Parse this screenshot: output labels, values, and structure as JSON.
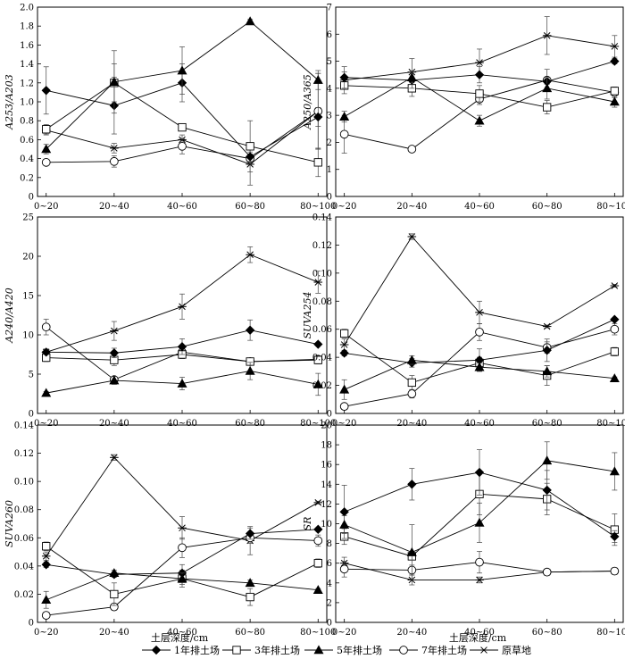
{
  "xlabel": "土层深度/cm",
  "categories": [
    "0~20",
    "20~40",
    "40~60",
    "60~80",
    "80~100"
  ],
  "legend": [
    {
      "name": "1年排土场",
      "marker": "diamond"
    },
    {
      "name": "3年排土场",
      "marker": "square"
    },
    {
      "name": "5年排土场",
      "marker": "triangle"
    },
    {
      "name": "7年排土场",
      "marker": "circle"
    },
    {
      "name": "原草地",
      "marker": "star"
    }
  ],
  "chart_data": [
    {
      "type": "line",
      "ylabel": "A253/A203",
      "ylim": [
        0,
        2.0
      ],
      "yticks": [
        "0",
        "0.2",
        "0.4",
        "0.6",
        "0.8",
        "1.0",
        "1.2",
        "1.4",
        "1.6",
        "1.8",
        "2.0"
      ],
      "categories": [
        "0~20",
        "20~40",
        "40~60",
        "60~80",
        "80~100"
      ],
      "series": [
        {
          "name": "1年排土场",
          "values": [
            1.12,
            0.96,
            1.2,
            0.42,
            0.84
          ],
          "errors": [
            0.25,
            0.3,
            0.2,
            0.05,
            0.1
          ]
        },
        {
          "name": "3年排土场",
          "values": [
            0.71,
            1.2,
            0.73,
            0.53,
            0.36
          ],
          "errors": [
            0.05,
            0.2,
            0.03,
            0.27,
            0.15
          ]
        },
        {
          "name": "5年排土场",
          "values": [
            0.5,
            1.21,
            1.33,
            1.85,
            1.23
          ],
          "errors": [
            0.05,
            0.33,
            0.25,
            0.02,
            0.1
          ]
        },
        {
          "name": "7年排土场",
          "values": [
            0.36,
            0.37,
            0.53,
            0.4,
            0.9
          ],
          "errors": [
            0.03,
            0.06,
            0.08,
            0.05,
            0.4
          ]
        },
        {
          "name": "原草地",
          "values": [
            0.7,
            0.51,
            0.6,
            0.34,
            0.9
          ],
          "errors": [
            0.05,
            0.05,
            0.05,
            0.22,
            0.4
          ]
        }
      ]
    },
    {
      "type": "line",
      "ylabel": "A250/A365",
      "ylim": [
        0,
        7
      ],
      "yticks": [
        "0",
        "1",
        "2",
        "3",
        "4",
        "5",
        "6",
        "7"
      ],
      "categories": [
        "0~20",
        "20~40",
        "40~60",
        "60~80",
        "80~100"
      ],
      "series": [
        {
          "name": "1年排土场",
          "values": [
            4.4,
            4.3,
            4.5,
            4.25,
            5.0
          ],
          "errors": [
            0.4,
            0.3,
            0.3,
            0.1,
            0.1
          ]
        },
        {
          "name": "3年排土场",
          "values": [
            4.1,
            4.0,
            3.8,
            3.3,
            3.9
          ],
          "errors": [
            0.3,
            0.3,
            0.3,
            0.25,
            0.1
          ]
        },
        {
          "name": "5年排土场",
          "values": [
            2.95,
            4.4,
            2.8,
            4.0,
            3.5
          ],
          "errors": [
            0.2,
            0.2,
            0.2,
            0.4,
            0.2
          ]
        },
        {
          "name": "7年排土场",
          "values": [
            2.3,
            1.75,
            3.6,
            4.3,
            3.85
          ],
          "errors": [
            0.7,
            0.05,
            0.2,
            0.4,
            0.2
          ]
        },
        {
          "name": "原草地",
          "values": [
            4.3,
            4.6,
            4.95,
            5.95,
            5.55
          ],
          "errors": [
            0.3,
            0.5,
            0.5,
            0.7,
            0.4
          ]
        }
      ]
    },
    {
      "type": "line",
      "ylabel": "A240/A420",
      "ylim": [
        0,
        25
      ],
      "yticks": [
        "0",
        "5",
        "10",
        "15",
        "20",
        "25"
      ],
      "categories": [
        "0~20",
        "20~40",
        "40~60",
        "60~80",
        "80~100"
      ],
      "series": [
        {
          "name": "1年排土场",
          "values": [
            7.8,
            7.7,
            8.5,
            10.6,
            8.8
          ],
          "errors": [
            0.3,
            0.6,
            1.0,
            1.3,
            0.2
          ]
        },
        {
          "name": "3年排土场",
          "values": [
            7.1,
            6.8,
            7.5,
            6.6,
            6.8
          ],
          "errors": [
            0.5,
            0.7,
            0.5,
            0.3,
            0.5
          ]
        },
        {
          "name": "5年排土场",
          "values": [
            2.6,
            4.2,
            3.8,
            5.4,
            3.7
          ],
          "errors": [
            0.2,
            0.5,
            0.8,
            1.1,
            1.4
          ]
        },
        {
          "name": "7年排土场",
          "values": [
            11.0,
            4.3,
            7.8,
            6.6,
            6.9
          ],
          "errors": [
            1.0,
            0.4,
            0.8,
            0.4,
            0.4
          ]
        },
        {
          "name": "原草地",
          "values": [
            7.8,
            10.5,
            13.6,
            20.2,
            16.7
          ],
          "errors": [
            0.4,
            1.2,
            1.6,
            1.0,
            1.4
          ]
        }
      ]
    },
    {
      "type": "line",
      "ylabel": "SUVA254",
      "ylim": [
        0,
        0.14
      ],
      "yticks": [
        "0",
        "0.02",
        "0.04",
        "0.06",
        "0.08",
        "0.10",
        "0.12",
        "0.14"
      ],
      "categories": [
        "0~20",
        "20~40",
        "40~60",
        "60~80",
        "80~100"
      ],
      "series": [
        {
          "name": "1年排土场",
          "values": [
            0.043,
            0.036,
            0.038,
            0.045,
            0.067
          ],
          "errors": [
            0.002,
            0.003,
            0.008,
            0.008,
            0.001
          ]
        },
        {
          "name": "3年排土场",
          "values": [
            0.057,
            0.022,
            0.036,
            0.027,
            0.044
          ],
          "errors": [
            0.003,
            0.005,
            0.004,
            0.007,
            0.003
          ]
        },
        {
          "name": "5年排土场",
          "values": [
            0.017,
            0.038,
            0.033,
            0.03,
            0.025
          ],
          "errors": [
            0.007,
            0.003,
            0.003,
            0.004,
            0.001
          ]
        },
        {
          "name": "7年排土场",
          "values": [
            0.005,
            0.014,
            0.058,
            0.047,
            0.06
          ],
          "errors": [
            0.002,
            0.003,
            0.006,
            0.004,
            0.004
          ]
        },
        {
          "name": "原草地",
          "values": [
            0.049,
            0.126,
            0.072,
            0.062,
            0.091
          ],
          "errors": [
            0.004,
            0.002,
            0.008,
            0.001,
            0.001
          ]
        }
      ]
    },
    {
      "type": "line",
      "ylabel": "SUVA260",
      "ylim": [
        0,
        0.14
      ],
      "yticks": [
        "0",
        "0.02",
        "0.04",
        "0.06",
        "0.08",
        "0.10",
        "0.12",
        "0.14"
      ],
      "categories": [
        "0~20",
        "20~40",
        "40~60",
        "60~80",
        "80~100"
      ],
      "series": [
        {
          "name": "1年排土场",
          "values": [
            0.041,
            0.034,
            0.035,
            0.063,
            0.066
          ],
          "errors": [
            0.002,
            0.002,
            0.006,
            0.004,
            0.001
          ]
        },
        {
          "name": "3年排土场",
          "values": [
            0.054,
            0.02,
            0.031,
            0.018,
            0.042
          ],
          "errors": [
            0.003,
            0.008,
            0.006,
            0.006,
            0.003
          ]
        },
        {
          "name": "5年排土场",
          "values": [
            0.016,
            0.035,
            0.031,
            0.028,
            0.023
          ],
          "errors": [
            0.006,
            0.002,
            0.004,
            0.002,
            0.001
          ]
        },
        {
          "name": "7年排土场",
          "values": [
            0.005,
            0.011,
            0.053,
            0.06,
            0.058
          ],
          "errors": [
            0.002,
            0.002,
            0.007,
            0.004,
            0.004
          ]
        },
        {
          "name": "原草地",
          "values": [
            0.047,
            0.117,
            0.067,
            0.058,
            0.085
          ],
          "errors": [
            0.003,
            0.002,
            0.008,
            0.01,
            0.001
          ]
        }
      ]
    },
    {
      "type": "line",
      "ylabel": "SR",
      "ylim": [
        0,
        20
      ],
      "yticks": [
        "0",
        "2",
        "4",
        "6",
        "8",
        "10",
        "12",
        "14",
        "16",
        "18",
        "20"
      ],
      "categories": [
        "0~20",
        "20~40",
        "40~60",
        "60~80",
        "80~100"
      ],
      "series": [
        {
          "name": "1年排土场",
          "values": [
            11.2,
            14.0,
            15.2,
            13.4,
            8.7
          ],
          "errors": [
            2.7,
            1.6,
            2.3,
            2.0,
            0.6
          ]
        },
        {
          "name": "3年排土场",
          "values": [
            8.7,
            6.7,
            13.0,
            12.5,
            9.4
          ],
          "errors": [
            0.8,
            0.3,
            2.1,
            1.6,
            1.6
          ]
        },
        {
          "name": "5年排土场",
          "values": [
            9.9,
            7.1,
            10.1,
            16.4,
            15.3
          ],
          "errors": [
            0.9,
            2.8,
            2.0,
            1.9,
            1.9
          ]
        },
        {
          "name": "7年排土场",
          "values": [
            5.4,
            5.3,
            6.1,
            5.1,
            5.2
          ],
          "errors": [
            0.8,
            0.5,
            1.1,
            0.3,
            0.3
          ]
        },
        {
          "name": "原草地",
          "values": [
            6.0,
            4.3,
            4.3,
            5.1,
            5.2
          ],
          "errors": [
            0.6,
            0.5,
            0.3,
            0.3,
            0.2
          ]
        }
      ]
    }
  ]
}
